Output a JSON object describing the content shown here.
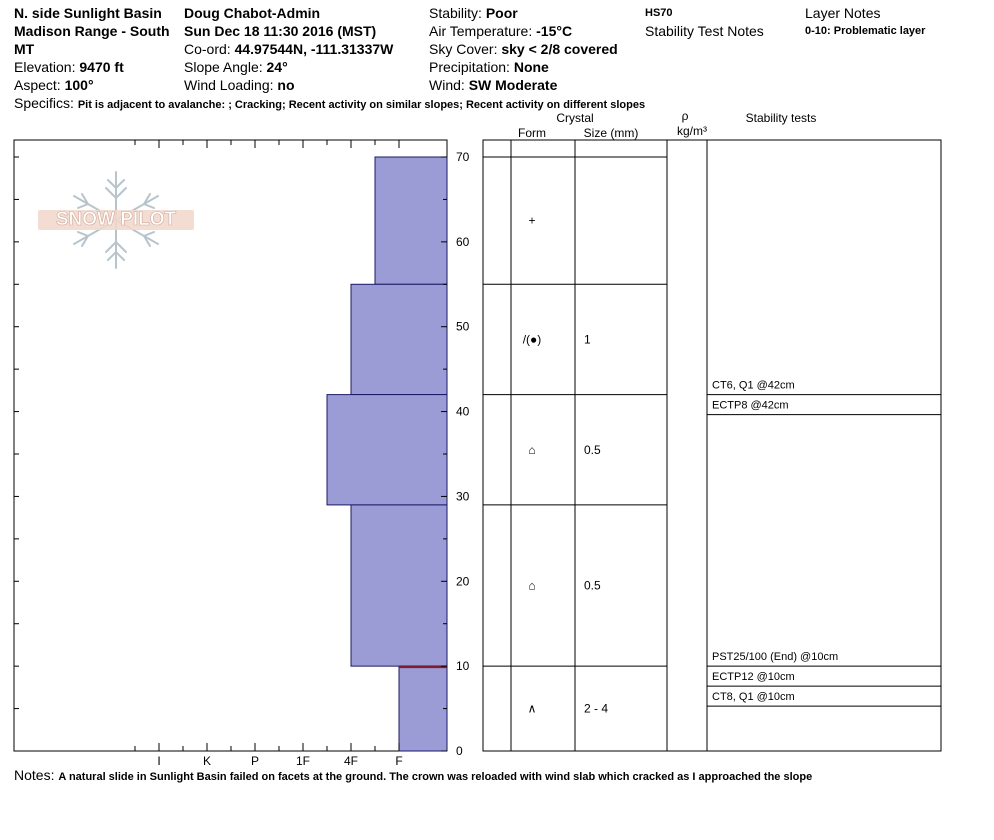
{
  "header": {
    "location_line1": "N. side Sunlight Basin",
    "location_line2": "Madison Range - South",
    "location_line3": "MT",
    "elevation_label": "Elevation:",
    "elevation_value": "9470 ft",
    "aspect_label": "Aspect:",
    "aspect_value": "100°",
    "observer": "Doug Chabot-Admin",
    "datetime": "Sun Dec 18 11:30 2016 (MST)",
    "coord_label": "Co-ord:",
    "coord_value": "44.97544N, -111.31337W",
    "slope_label": "Slope Angle:",
    "slope_value": "24°",
    "wind_loading_label": "Wind Loading:",
    "wind_loading_value": "no",
    "stability_label": "Stability:",
    "stability_value": "Poor",
    "air_temp_label": "Air Temperature:",
    "air_temp_value": "-15°C",
    "sky_label": "Sky Cover:",
    "sky_value": "sky < 2/8 covered",
    "precip_label": "Precipitation:",
    "precip_value": "None",
    "wind_label": "Wind:",
    "wind_value": "SW Moderate",
    "hs": "HS70",
    "stability_test_notes": "Stability Test Notes",
    "layer_notes_title": "Layer Notes",
    "layer_notes_entry": "0-10: Problematic layer",
    "specifics_label": "Specifics:",
    "specifics_value": "Pit is adjacent to avalanche: ; Cracking; Recent activity on similar slopes; Recent activity on different slopes"
  },
  "logo": {
    "text": "SNOW PILOT"
  },
  "table_header": {
    "crystal": "Crystal",
    "form": "Form",
    "size": "Size (mm)",
    "rho": "ρ",
    "density_unit": "kg/m³",
    "stability_tests": "Stability tests"
  },
  "notes": {
    "label": "Notes:",
    "value": "A natural slide in Sunlight Basin failed on facets at the ground. The crown was reloaded with wind slab which cracked as I approached the slope"
  },
  "colors": {
    "layer_fill": "#9b9bd6",
    "layer_stroke": "#1a1a66",
    "weak_layer_marker": "#8b1a2a"
  },
  "chart_data": {
    "type": "bar",
    "subtype": "snow-profile-hand-hardness",
    "ylabel": "",
    "ylim": [
      0,
      70
    ],
    "y_ticks": [
      "0",
      "10",
      "20",
      "30",
      "40",
      "50",
      "60",
      "70"
    ],
    "hardness_scale": [
      "I",
      "K",
      "P",
      "1F",
      "4F",
      "F"
    ],
    "layers": [
      {
        "top": 70,
        "bottom": 55,
        "hardness": "4F-",
        "hardness_value": 1.5,
        "form": "+",
        "size": ""
      },
      {
        "top": 55,
        "bottom": 42,
        "hardness": "4F",
        "hardness_value": 2.0,
        "form": "/(●)",
        "size": "1"
      },
      {
        "top": 42,
        "bottom": 29,
        "hardness": "4F+",
        "hardness_value": 2.5,
        "form": "⌂",
        "size": "0.5"
      },
      {
        "top": 29,
        "bottom": 10,
        "hardness": "4F",
        "hardness_value": 2.0,
        "form": "⌂",
        "size": "0.5"
      },
      {
        "top": 10,
        "bottom": 0,
        "hardness": "F",
        "hardness_value": 1.0,
        "form": "∧",
        "size": "2 - 4"
      }
    ],
    "weak_layer_depth": 10,
    "stability_tests": [
      {
        "depth": 42,
        "text": "CT6, Q1 @42cm"
      },
      {
        "depth": 42,
        "text": "ECTP8 @42cm"
      },
      {
        "depth": 10,
        "text": "PST25/100 (End) @10cm"
      },
      {
        "depth": 10,
        "text": "ECTP12 @10cm"
      },
      {
        "depth": 10,
        "text": "CT8, Q1 @10cm"
      }
    ]
  }
}
